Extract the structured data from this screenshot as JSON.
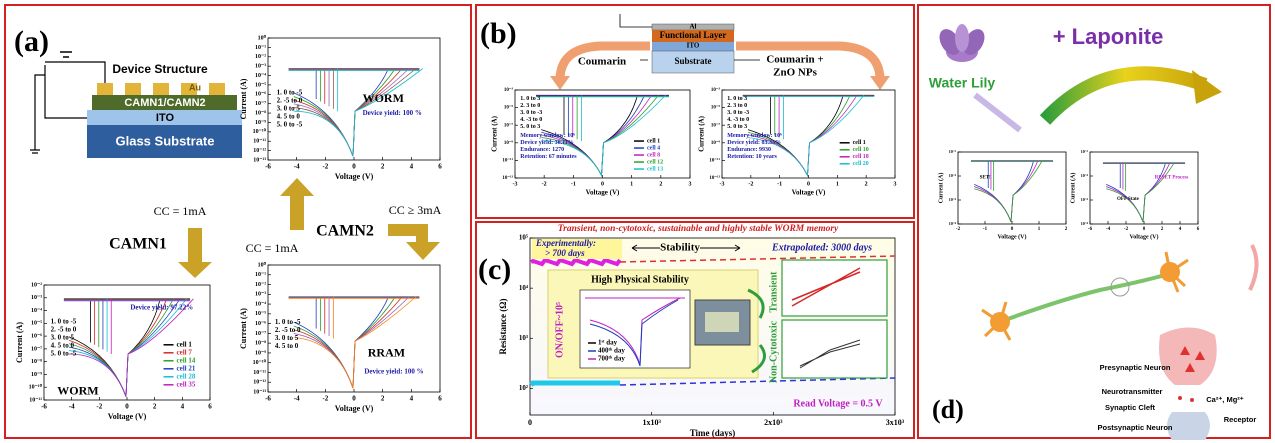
{
  "panel_a": {
    "label": "(a)",
    "device": {
      "title": "Device Structure",
      "layers": [
        "Au",
        "CAMN1/CAMN2",
        "ITO",
        "Glass Substrate"
      ]
    },
    "flow": {
      "cc_left": "CC = 1mA",
      "camn1": "CAMN1",
      "camn2": "CAMN2",
      "cc_mid": "CC = 1mA",
      "cc_right": "CC ≥ 3mA"
    },
    "plots": [
      {
        "title": "WORM",
        "yield": "Device yield: 100 %",
        "steps": [
          "1. 0 to -5",
          "2. -5 to 0",
          "3. 0 to 5",
          "4. 5 to 0",
          "5. 0 to -5"
        ],
        "xlabel": "Voltage (V)",
        "ylabel": "Current (A)",
        "xticks": [
          "-6",
          "-4",
          "-2",
          "0",
          "2",
          "4",
          "6"
        ],
        "yticks": [
          "10⁰",
          "10⁻¹",
          "10⁻²",
          "10⁻³",
          "10⁻⁴",
          "10⁻⁵",
          "10⁻⁶",
          "10⁻⁷",
          "10⁻⁸",
          "10⁻⁹",
          "10⁻¹⁰",
          "10⁻¹¹",
          "10⁻¹²",
          "10⁻¹³"
        ],
        "colors": [
          "#1f3fbf",
          "#2ca02c",
          "#d62728",
          "#9467bd",
          "#8c564b",
          "#17becf"
        ]
      },
      {
        "title": "WORM",
        "yield": "Device yield: 97.22%",
        "steps": [
          "1. 0 to -5",
          "2. -5 to 0",
          "3. 0 to 5",
          "4. 5 to 0",
          "5. 0 to -5"
        ],
        "xlabel": "Voltage (V)",
        "ylabel": "Current (A)",
        "xticks": [
          "-6",
          "-4",
          "-2",
          "0",
          "2",
          "4",
          "6"
        ],
        "yticks": [
          "10⁻²",
          "10⁻³",
          "10⁻⁴",
          "10⁻⁵",
          "10⁻⁶",
          "10⁻⁷",
          "10⁻⁸",
          "10⁻⁹",
          "10⁻¹⁰",
          "10⁻¹¹"
        ],
        "legend": [
          {
            "name": "cell 1",
            "color": "#000000"
          },
          {
            "name": "cell 7",
            "color": "#d62728"
          },
          {
            "name": "cell 14",
            "color": "#2ca02c"
          },
          {
            "name": "cell 21",
            "color": "#1f3fbf"
          },
          {
            "name": "cell 28",
            "color": "#17becf"
          },
          {
            "name": "cell 35",
            "color": "#c020c0"
          }
        ]
      },
      {
        "title": "RRAM",
        "yield": "Device yield: 100 %",
        "steps": [
          "1. 0 to -5",
          "2. -5 to 0",
          "3. 0 to  5",
          "4. 5 to 0"
        ],
        "xlabel": "Voltage (V)",
        "ylabel": "Current (A)",
        "xticks": [
          "-6",
          "-4",
          "-2",
          "0",
          "2",
          "4",
          "6"
        ],
        "yticks": [
          "10⁰",
          "10⁻¹",
          "10⁻²",
          "10⁻³",
          "10⁻⁴",
          "10⁻⁵",
          "10⁻⁶",
          "10⁻⁷",
          "10⁻⁸",
          "10⁻⁹",
          "10⁻¹⁰",
          "10⁻¹¹",
          "10⁻¹²",
          "10⁻¹³"
        ],
        "colors": [
          "#1f3fbf",
          "#2ca02c",
          "#d62728",
          "#9467bd",
          "#ff7f0e"
        ]
      }
    ]
  },
  "panel_b": {
    "label": "(b)",
    "stack": [
      "Al",
      "Functional Layer",
      "ITO",
      "Substrate"
    ],
    "left_label": "Coumarin",
    "right_label": [
      "Coumarin +",
      "ZnO NPs"
    ],
    "plots": [
      {
        "steps": [
          "1. 0 to 3",
          "2. 3 to 0",
          "3. 0 to -3",
          "4. -3 to 0",
          "5. 0 to 3"
        ],
        "info": [
          "Memory window: 10⁶",
          "Device yield: 36.11%",
          "Endurance: 1270",
          "Retention: 67 minutes"
        ],
        "xlabel": "Voltage (V)",
        "ylabel": "Current (A)",
        "xticks": [
          "-3",
          "-2",
          "-1",
          "0",
          "1",
          "2",
          "3"
        ],
        "yticks": [
          "10⁻³",
          "10⁻⁵",
          "10⁻⁷",
          "10⁻⁹",
          "10⁻¹¹",
          "10⁻¹³"
        ],
        "legend": [
          {
            "name": "cell 1",
            "color": "#000000"
          },
          {
            "name": "cell 4",
            "color": "#1f3fbf"
          },
          {
            "name": "cell 8",
            "color": "#c020c0"
          },
          {
            "name": "cell 12",
            "color": "#2ca02c"
          },
          {
            "name": "cell 13",
            "color": "#17becf"
          }
        ]
      },
      {
        "steps": [
          "1. 0 to 3",
          "2. 3 to 0",
          "3. 0 to -3",
          "4. -3 to 0",
          "5. 0 to 3"
        ],
        "info": [
          "Memory window: 10⁶",
          "Device yield: 83.33%",
          "Endurance: 9930",
          "Retention: 10 years"
        ],
        "xlabel": "Voltage (V)",
        "ylabel": "Current (A)",
        "xticks": [
          "-3",
          "-2",
          "-1",
          "0",
          "1",
          "2",
          "3"
        ],
        "yticks": [
          "10⁻³",
          "10⁻⁵",
          "10⁻⁷",
          "10⁻⁹",
          "10⁻¹¹",
          "10⁻¹³"
        ],
        "legend": [
          {
            "name": "cell 1",
            "color": "#000000"
          },
          {
            "name": "cell 10",
            "color": "#2ca02c"
          },
          {
            "name": "cell 18",
            "color": "#c020c0"
          },
          {
            "name": "cell 20",
            "color": "#17becf"
          }
        ]
      }
    ]
  },
  "panel_c": {
    "label": "(c)",
    "title": "Transient, non-cytotoxic, sustainable and highly stable WORM memory",
    "experimental": [
      "Experimentally:",
      "> 700 days"
    ],
    "stability": "Stability",
    "extrapolated": "Extrapolated: 3000 days",
    "inset_title": "High Physical Stability",
    "on_off": "ON/OFF~10⁵",
    "inset_legend": [
      "1ˢᵗ day",
      "400ᵗʰ day",
      "700ᵗʰ day"
    ],
    "transient": "Transient",
    "non_cytotoxic": "Non-Cytotoxic",
    "read_voltage": "Read Voltage = 0.5 V",
    "plot": {
      "xlabel": "Time (days)",
      "ylabel": "Resistance (Ω)",
      "xticks": [
        "0",
        "1x10³",
        "2x10³",
        "3x10³"
      ],
      "yticks": [
        "10⁵",
        "10⁴",
        "10³",
        "10²"
      ]
    }
  },
  "panel_d": {
    "label": "(d)",
    "source": "Water Lily",
    "additive": "+ Laponite",
    "plots": [
      {
        "xlabel": "Voltage (V)",
        "ylabel": "Current (A)",
        "xticks": [
          "-2",
          "-1",
          "0",
          "1",
          "2"
        ],
        "yticks": [
          "10⁻²",
          "10⁻⁴",
          "10⁻⁶",
          "10⁻⁸"
        ],
        "notes": [
          "SET!"
        ],
        "colors": [
          "#1f3fbf",
          "#c020c0",
          "#2ca02c"
        ]
      },
      {
        "xlabel": "Voltage (V)",
        "ylabel": "Current (A)",
        "xticks": [
          "-6",
          "-4",
          "-2",
          "0",
          "2",
          "4",
          "6"
        ],
        "yticks": [
          "10⁻²",
          "10⁻⁴",
          "10⁻⁶",
          "10⁻⁸"
        ],
        "notes": [
          "OFF State",
          "RESET Process"
        ],
        "colors": [
          "#1f3fbf",
          "#c020c0",
          "#2ca02c"
        ]
      }
    ],
    "synapse": [
      "Presynaptic Neuron",
      "Neurotransmitter",
      "Synaptic Cleft",
      "Ca²⁺, Mg²⁺",
      "Postsynaptic Neuron",
      "Receptor"
    ]
  }
}
